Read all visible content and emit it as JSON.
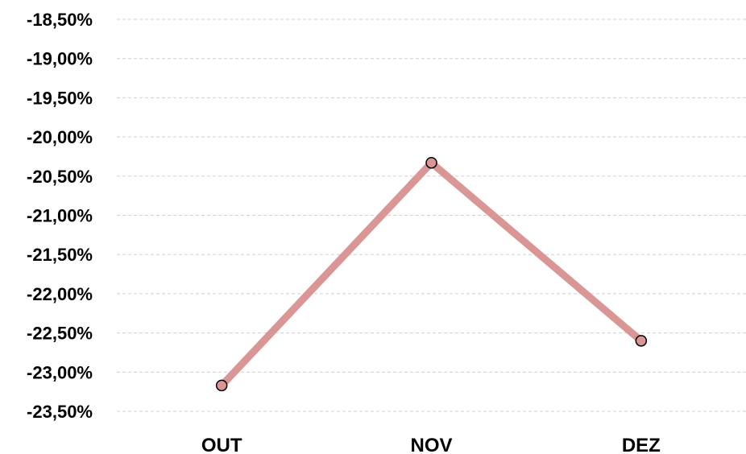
{
  "chart_data": {
    "type": "line",
    "title": "",
    "xlabel": "",
    "ylabel": "",
    "categories": [
      "OUT",
      "NOV",
      "DEZ"
    ],
    "series": [
      {
        "values": [
          -23.17,
          -20.33,
          -22.6
        ],
        "color": "#d99694"
      }
    ],
    "ylim": [
      -23.5,
      -18.5
    ],
    "yticks": [
      -18.5,
      -19.0,
      -19.5,
      -20.0,
      -20.5,
      -21.0,
      -21.5,
      -22.0,
      -22.5,
      -23.0,
      -23.5
    ],
    "ytick_labels": [
      "-18,50%",
      "-19,00%",
      "-19,50%",
      "-20,00%",
      "-20,50%",
      "-21,00%",
      "-21,50%",
      "-22,00%",
      "-22,50%",
      "-23,00%",
      "-23,50%"
    ],
    "grid": true,
    "legend": "none",
    "marker_fill": "#d99694",
    "grid_color": "#cfcfcf"
  }
}
